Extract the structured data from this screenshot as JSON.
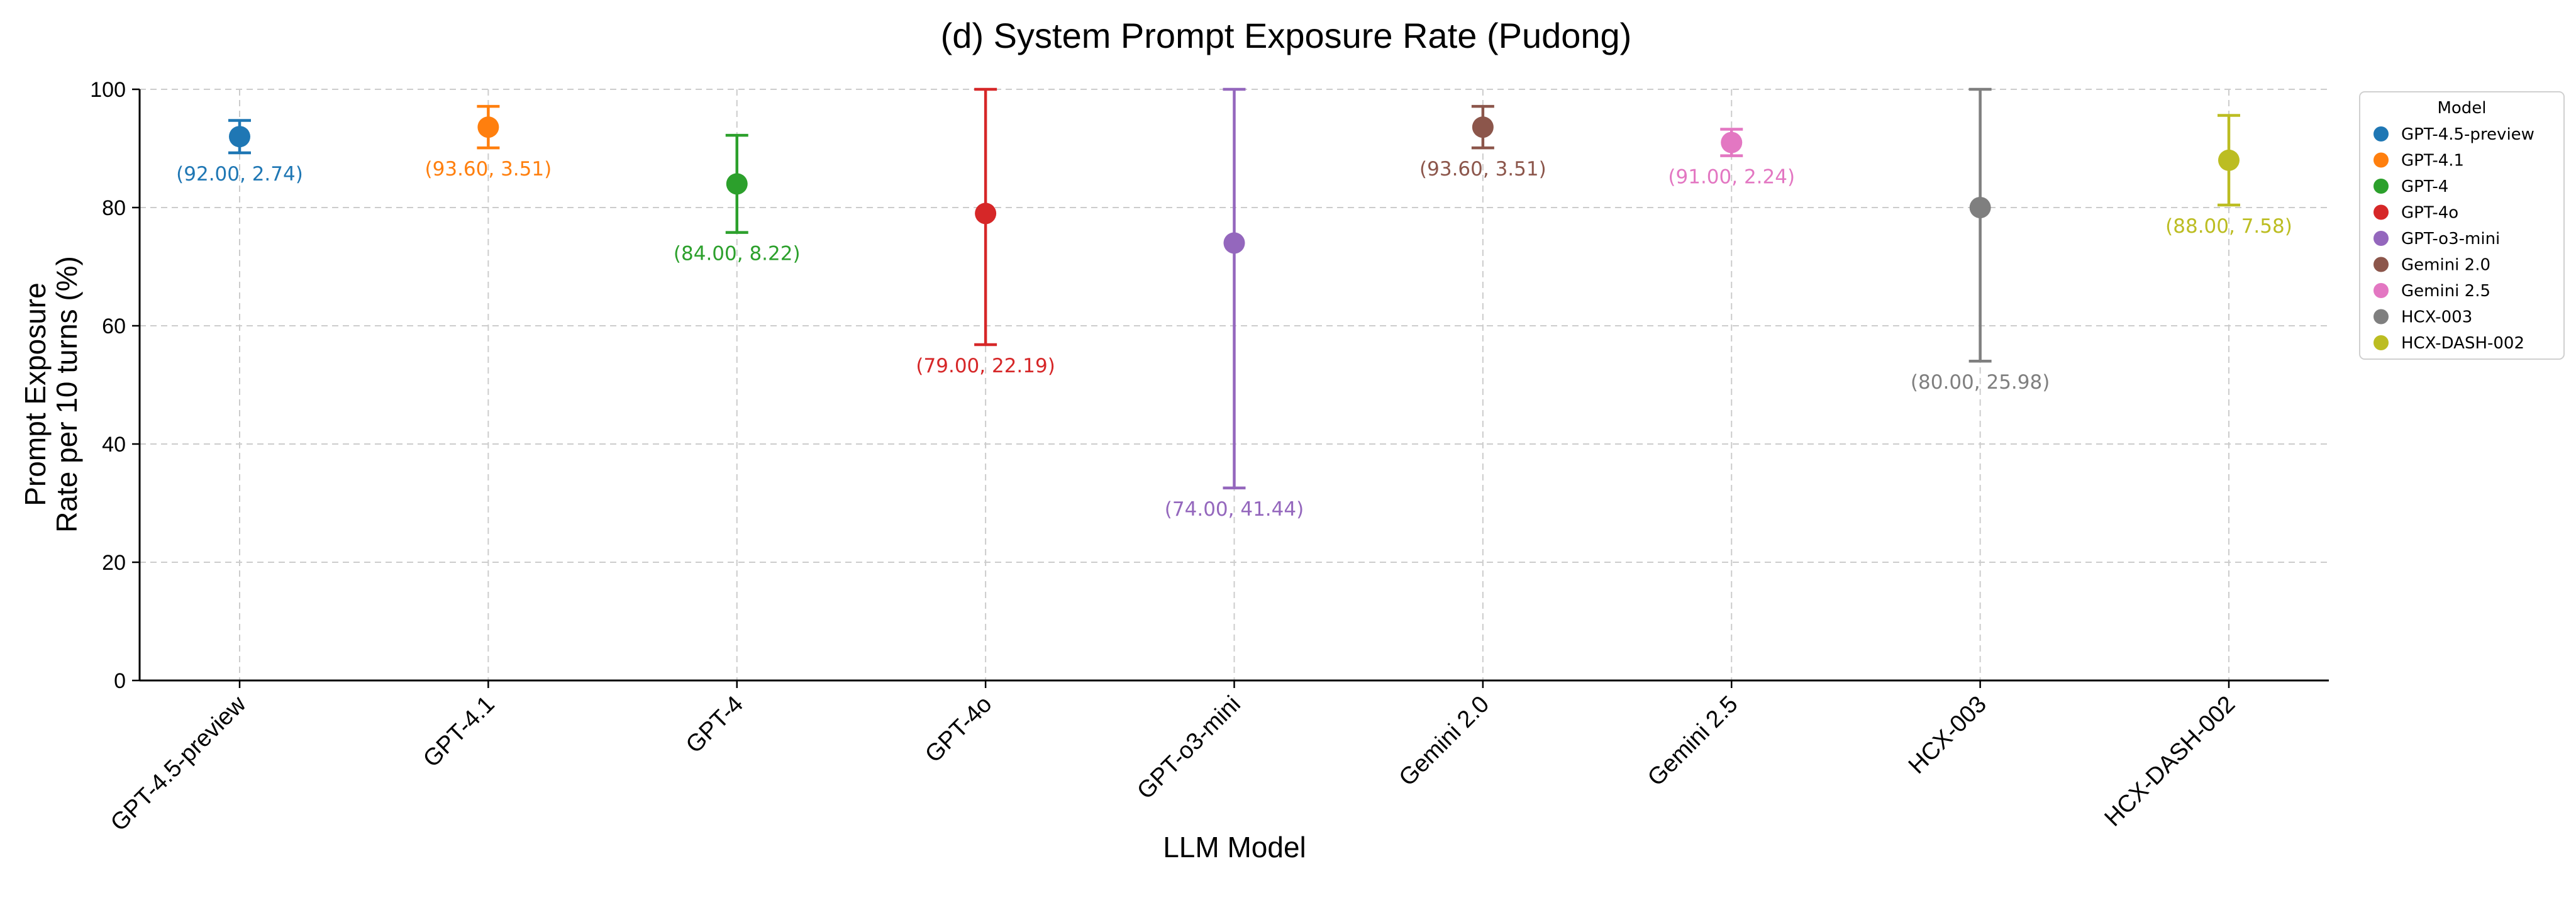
{
  "chart_data": {
    "type": "scatter",
    "title": "(d) System Prompt Exposure Rate (Pudong)",
    "xlabel": "LLM Model",
    "ylabel_lines": [
      "Prompt Exposure",
      "Rate per 10 turns (%)"
    ],
    "ylim": [
      0,
      100
    ],
    "yticks": [
      0,
      20,
      40,
      60,
      80,
      100
    ],
    "grid": true,
    "legend_title": "Model",
    "legend_position": "upper-right-outside",
    "categories": [
      "GPT-4.5-preview",
      "GPT-4.1",
      "GPT-4",
      "GPT-4o",
      "GPT-o3-mini",
      "Gemini 2.0",
      "Gemini 2.5",
      "HCX-003",
      "HCX-DASH-002"
    ],
    "series": [
      {
        "name": "GPT-4.5-preview",
        "mean": 92.0,
        "std": 2.74,
        "label": "(92.00, 2.74)",
        "color": "#1f77b4"
      },
      {
        "name": "GPT-4.1",
        "mean": 93.6,
        "std": 3.51,
        "label": "(93.60, 3.51)",
        "color": "#ff7f0e"
      },
      {
        "name": "GPT-4",
        "mean": 84.0,
        "std": 8.22,
        "label": "(84.00, 8.22)",
        "color": "#2ca02c"
      },
      {
        "name": "GPT-4o",
        "mean": 79.0,
        "std": 22.19,
        "label": "(79.00, 22.19)",
        "color": "#d62728"
      },
      {
        "name": "GPT-o3-mini",
        "mean": 74.0,
        "std": 41.44,
        "label": "(74.00, 41.44)",
        "color": "#9467bd"
      },
      {
        "name": "Gemini 2.0",
        "mean": 93.6,
        "std": 3.51,
        "label": "(93.60, 3.51)",
        "color": "#8c564b"
      },
      {
        "name": "Gemini 2.5",
        "mean": 91.0,
        "std": 2.24,
        "label": "(91.00, 2.24)",
        "color": "#e377c2"
      },
      {
        "name": "HCX-003",
        "mean": 80.0,
        "std": 25.98,
        "label": "(80.00, 25.98)",
        "color": "#7f7f7f"
      },
      {
        "name": "HCX-DASH-002",
        "mean": 88.0,
        "std": 7.58,
        "label": "(88.00, 7.58)",
        "color": "#bcbd22"
      }
    ]
  }
}
